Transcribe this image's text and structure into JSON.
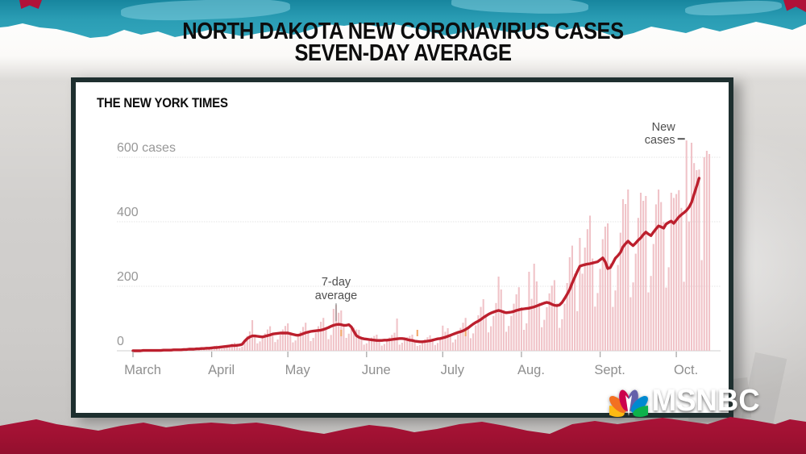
{
  "banner": {
    "title_line1": "NORTH DAKOTA NEW CORONAVIRUS CASES",
    "title_line2": "SEVEN-DAY AVERAGE"
  },
  "source_label": "THE NEW YORK TIMES",
  "network": {
    "name": "MSNBC",
    "peacock_colors": [
      "#fdb913",
      "#f37021",
      "#cc004c",
      "#6460aa",
      "#0089d0",
      "#0db14b"
    ]
  },
  "colors": {
    "teal_band": "#2a9db4",
    "red_band": "#a01132",
    "bar": "#f0c3c8",
    "line": "#bc1f2d",
    "grid": "#e4e4e4",
    "baseline": "#cfcfcf",
    "axis_text": "#979797",
    "annotation_text": "#4f4f4f",
    "card_border": "#1e2f2f",
    "anomaly": "#f2a86a"
  },
  "chart_data": {
    "type": "bar",
    "title": "NORTH DAKOTA NEW CORONAVIRUS CASES SEVEN-DAY AVERAGE",
    "source": "THE NEW YORK TIMES",
    "x_tick_labels": [
      "March",
      "April",
      "May",
      "June",
      "July",
      "Aug.",
      "Sept.",
      "Oct."
    ],
    "month_start_days": [
      0,
      31,
      61,
      92,
      122,
      153,
      184,
      214
    ],
    "y_ticks": [
      {
        "v": 0,
        "label": "0"
      },
      {
        "v": 200,
        "label": "200"
      },
      {
        "v": 400,
        "label": "400"
      },
      {
        "v": 600,
        "label": "600 cases"
      }
    ],
    "ylim": [
      0,
      680
    ],
    "grid": true,
    "legend_position": "none",
    "annotations": [
      {
        "id": "new-cases",
        "text_lines": [
          "New",
          "cases"
        ],
        "day": 218,
        "value": 652
      },
      {
        "id": "avg",
        "text_lines": [
          "7-day",
          "average"
        ],
        "day": 80,
        "value": 82
      }
    ],
    "anomaly_days": [
      82,
      112,
      131
    ],
    "series": [
      {
        "name": "New cases",
        "type": "bar",
        "values": [
          0,
          0,
          0,
          0,
          1,
          2,
          1,
          0,
          1,
          1,
          1,
          2,
          3,
          2,
          1,
          1,
          3,
          4,
          4,
          5,
          4,
          2,
          3,
          5,
          6,
          8,
          9,
          7,
          4,
          5,
          7,
          11,
          14,
          16,
          12,
          6,
          8,
          13,
          18,
          22,
          25,
          18,
          9,
          13,
          27,
          46,
          60,
          95,
          48,
          23,
          29,
          39,
          54,
          66,
          76,
          55,
          27,
          35,
          50,
          66,
          77,
          85,
          56,
          26,
          32,
          43,
          60,
          74,
          87,
          61,
          30,
          40,
          56,
          76,
          90,
          102,
          72,
          36,
          49,
          130,
          142,
          118,
          125,
          83,
          40,
          53,
          67,
          72,
          66,
          65,
          41,
          19,
          23,
          32,
          41,
          46,
          50,
          34,
          16,
          21,
          30,
          41,
          49,
          56,
          100,
          19,
          25,
          33,
          42,
          46,
          50,
          32,
          15,
          18,
          25,
          35,
          42,
          48,
          35,
          18,
          24,
          34,
          78,
          59,
          70,
          50,
          26,
          35,
          51,
          71,
          87,
          102,
          75,
          39,
          54,
          79,
          110,
          136,
          160,
          113,
          57,
          76,
          108,
          148,
          230,
          190,
          126,
          59,
          77,
          108,
          146,
          175,
          197,
          135,
          65,
          85,
          245,
          161,
          270,
          215,
          149,
          73,
          96,
          135,
          178,
          202,
          219,
          147,
          71,
          98,
          146,
          210,
          290,
          326,
          239,
          123,
          350,
          239,
          320,
          377,
          419,
          286,
          137,
          179,
          254,
          346,
          385,
          395,
          271,
          136,
          187,
          266,
          366,
          470,
          455,
          500,
          166,
          212,
          301,
          412,
          490,
          465,
          480,
          181,
          232,
          331,
          454,
          500,
          461,
          399,
          196,
          259,
          490,
          474,
          486,
          498,
          443,
          214,
          652,
          401,
          645,
          582,
          560,
          562,
          281,
          600,
          620,
          610
        ]
      },
      {
        "name": "7-day average",
        "type": "line",
        "values": [
          0,
          0,
          0,
          0,
          1,
          1,
          1,
          1,
          1,
          1,
          1,
          1,
          2,
          2,
          2,
          2,
          3,
          3,
          3,
          3,
          4,
          4,
          5,
          5,
          5,
          6,
          6,
          7,
          7,
          8,
          8,
          9,
          10,
          10,
          11,
          12,
          13,
          14,
          15,
          16,
          16,
          17,
          18,
          20,
          30,
          38,
          43,
          46,
          46,
          45,
          44,
          43,
          45,
          47,
          49,
          52,
          53,
          54,
          55,
          55,
          55,
          55,
          53,
          51,
          49,
          48,
          50,
          53,
          56,
          58,
          60,
          61,
          62,
          63,
          64,
          66,
          69,
          72,
          76,
          79,
          81,
          82,
          81,
          79,
          79,
          81,
          74,
          60,
          47,
          42,
          39,
          37,
          36,
          35,
          34,
          33,
          32,
          32,
          32,
          33,
          33,
          34,
          35,
          36,
          37,
          38,
          38,
          37,
          35,
          33,
          32,
          30,
          29,
          28,
          28,
          29,
          30,
          31,
          33,
          35,
          37,
          38,
          40,
          42,
          45,
          48,
          51,
          54,
          57,
          59,
          62,
          66,
          71,
          77,
          83,
          88,
          92,
          97,
          103,
          108,
          113,
          117,
          120,
          123,
          125,
          123,
          120,
          118,
          119,
          120,
          122,
          125,
          127,
          129,
          130,
          131,
          132,
          134,
          136,
          139,
          142,
          145,
          148,
          150,
          148,
          144,
          141,
          140,
          142,
          150,
          162,
          175,
          190,
          210,
          228,
          246,
          262,
          265,
          267,
          269,
          270,
          272,
          274,
          276,
          282,
          288,
          276,
          255,
          258,
          272,
          287,
          295,
          305,
          322,
          332,
          340,
          332,
          326,
          334,
          343,
          350,
          360,
          368,
          362,
          357,
          368,
          378,
          387,
          384,
          380,
          393,
          398,
          402,
          395,
          405,
          415,
          422,
          428,
          435,
          445,
          460,
          485,
          510,
          535,
          null,
          null,
          null,
          null
        ]
      }
    ]
  }
}
